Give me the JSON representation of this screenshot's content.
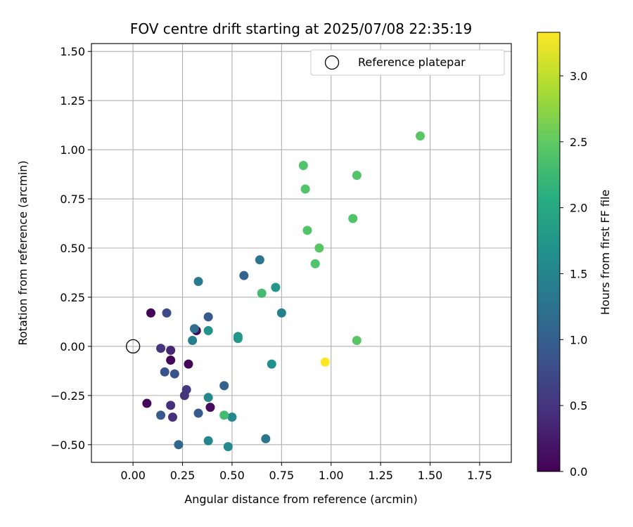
{
  "chart_data": {
    "type": "scatter",
    "title": "FOV centre drift starting at 2025/07/08 22:35:19",
    "xlabel": "Angular distance from reference (arcmin)",
    "ylabel": "Rotation from reference (arcmin)",
    "xlim": [
      -0.21,
      1.91
    ],
    "ylim": [
      -0.59,
      1.54
    ],
    "xticks": [
      0.0,
      0.25,
      0.5,
      0.75,
      1.0,
      1.25,
      1.5,
      1.75
    ],
    "xtick_labels": [
      "0.00",
      "0.25",
      "0.50",
      "0.75",
      "1.00",
      "1.25",
      "1.50",
      "1.75"
    ],
    "yticks": [
      -0.5,
      -0.25,
      0.0,
      0.25,
      0.5,
      0.75,
      1.0,
      1.25,
      1.5
    ],
    "ytick_labels": [
      "−0.50",
      "−0.25",
      "0.00",
      "0.25",
      "0.50",
      "0.75",
      "1.00",
      "1.25",
      "1.50"
    ],
    "grid": true,
    "legend": {
      "placement": "top-right",
      "entries": [
        "Reference platepar"
      ]
    },
    "reference_point": {
      "name": "Reference platepar",
      "x": 0.0,
      "y": 0.0
    },
    "colorbar": {
      "label": "Hours from first FF file",
      "range": [
        0.0,
        3.33
      ],
      "ticks": [
        0.0,
        0.5,
        1.0,
        1.5,
        2.0,
        2.5,
        3.0
      ],
      "tick_labels": [
        "0.0",
        "0.5",
        "1.0",
        "1.5",
        "2.0",
        "2.5",
        "3.0"
      ],
      "colormap": "viridis"
    },
    "points": [
      {
        "x": 0.09,
        "y": 0.17,
        "h": 0.05
      },
      {
        "x": 0.07,
        "y": -0.29,
        "h": 0.05
      },
      {
        "x": 0.19,
        "y": -0.07,
        "h": 0.05
      },
      {
        "x": 0.28,
        "y": -0.09,
        "h": 0.05
      },
      {
        "x": 0.32,
        "y": 0.08,
        "h": 0.05
      },
      {
        "x": 0.39,
        "y": -0.31,
        "h": 0.1
      },
      {
        "x": 0.19,
        "y": -0.02,
        "h": 0.35
      },
      {
        "x": 0.14,
        "y": -0.01,
        "h": 0.5
      },
      {
        "x": 0.19,
        "y": -0.3,
        "h": 0.45
      },
      {
        "x": 0.2,
        "y": -0.36,
        "h": 0.45
      },
      {
        "x": 0.27,
        "y": -0.22,
        "h": 0.55
      },
      {
        "x": 0.26,
        "y": -0.25,
        "h": 0.5
      },
      {
        "x": 0.17,
        "y": 0.17,
        "h": 0.75
      },
      {
        "x": 0.16,
        "y": -0.13,
        "h": 0.85
      },
      {
        "x": 0.21,
        "y": -0.14,
        "h": 0.85
      },
      {
        "x": 0.14,
        "y": -0.35,
        "h": 0.95
      },
      {
        "x": 0.33,
        "y": -0.34,
        "h": 0.95
      },
      {
        "x": 0.38,
        "y": 0.15,
        "h": 0.95
      },
      {
        "x": 0.46,
        "y": -0.2,
        "h": 1.05
      },
      {
        "x": 0.56,
        "y": 0.36,
        "h": 1.05
      },
      {
        "x": 0.23,
        "y": -0.5,
        "h": 1.1
      },
      {
        "x": 0.31,
        "y": 0.09,
        "h": 1.2
      },
      {
        "x": 0.3,
        "y": 0.03,
        "h": 1.4
      },
      {
        "x": 0.33,
        "y": 0.33,
        "h": 1.35
      },
      {
        "x": 0.64,
        "y": 0.44,
        "h": 1.3
      },
      {
        "x": 0.67,
        "y": -0.47,
        "h": 1.3
      },
      {
        "x": 0.75,
        "y": 0.17,
        "h": 1.45
      },
      {
        "x": 0.38,
        "y": -0.48,
        "h": 1.5
      },
      {
        "x": 0.38,
        "y": -0.26,
        "h": 1.55
      },
      {
        "x": 0.5,
        "y": -0.36,
        "h": 1.55
      },
      {
        "x": 0.48,
        "y": -0.51,
        "h": 1.55
      },
      {
        "x": 0.7,
        "y": -0.09,
        "h": 1.65
      },
      {
        "x": 0.53,
        "y": 0.05,
        "h": 1.7
      },
      {
        "x": 0.53,
        "y": 0.04,
        "h": 1.75
      },
      {
        "x": 0.38,
        "y": 0.08,
        "h": 1.7
      },
      {
        "x": 0.72,
        "y": 0.3,
        "h": 1.75
      },
      {
        "x": 0.46,
        "y": -0.35,
        "h": 2.3
      },
      {
        "x": 0.65,
        "y": 0.27,
        "h": 2.3
      },
      {
        "x": 0.86,
        "y": 0.92,
        "h": 2.4
      },
      {
        "x": 0.87,
        "y": 0.8,
        "h": 2.4
      },
      {
        "x": 0.88,
        "y": 0.59,
        "h": 2.4
      },
      {
        "x": 0.92,
        "y": 0.42,
        "h": 2.4
      },
      {
        "x": 0.94,
        "y": 0.5,
        "h": 2.45
      },
      {
        "x": 1.11,
        "y": 0.65,
        "h": 2.4
      },
      {
        "x": 1.13,
        "y": 0.87,
        "h": 2.4
      },
      {
        "x": 1.45,
        "y": 1.07,
        "h": 2.45
      },
      {
        "x": 1.13,
        "y": 0.03,
        "h": 2.45
      },
      {
        "x": 0.97,
        "y": -0.08,
        "h": 3.33
      }
    ]
  }
}
